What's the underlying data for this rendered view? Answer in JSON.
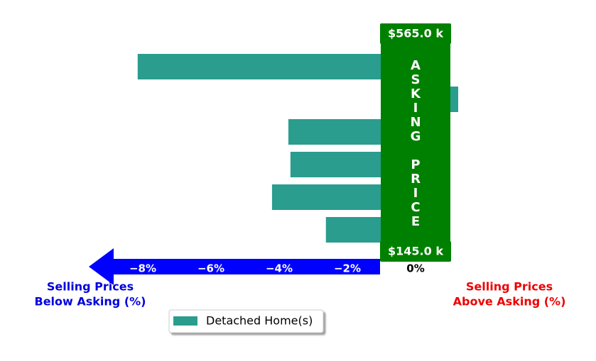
{
  "chart_data": {
    "type": "barh",
    "categories": [
      null,
      null,
      null,
      null,
      null,
      null
    ],
    "series": [
      {
        "name": "Detached Home(s)",
        "color": "#2a9d8f",
        "values": [
          -8.15,
          1.25,
          -3.73,
          -3.67,
          -4.21,
          -2.63
        ]
      }
    ],
    "xlim": [
      -9.5,
      2.5
    ],
    "xticks": [
      {
        "value": -8,
        "label": "−8%"
      },
      {
        "value": -6,
        "label": "−6%"
      },
      {
        "value": -4,
        "label": "−4%"
      },
      {
        "value": -2,
        "label": "−2%"
      },
      {
        "value": 0,
        "label": "0%"
      }
    ],
    "center_label": "ASKING PRICE",
    "top_price": "$565.0 k",
    "bottom_price": "$145.0 k",
    "below_label": [
      "Selling Prices",
      "Below Asking (%)"
    ],
    "above_label": [
      "Selling Prices",
      "Above Asking (%)"
    ],
    "legend": "lower center"
  }
}
